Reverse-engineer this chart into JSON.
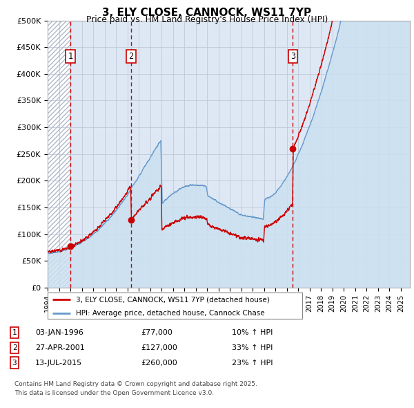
{
  "title": "3, ELY CLOSE, CANNOCK, WS11 7YP",
  "subtitle": "Price paid vs. HM Land Registry's House Price Index (HPI)",
  "ylim": [
    0,
    500000
  ],
  "yticks": [
    0,
    50000,
    100000,
    150000,
    200000,
    250000,
    300000,
    350000,
    400000,
    450000,
    500000
  ],
  "ytick_labels": [
    "£0",
    "£50K",
    "£100K",
    "£150K",
    "£200K",
    "£250K",
    "£300K",
    "£350K",
    "£400K",
    "£450K",
    "£500K"
  ],
  "xlim_start": 1994.0,
  "xlim_end": 2025.8,
  "sale_dates": [
    1996.01,
    2001.32,
    2015.53
  ],
  "sale_prices": [
    77000,
    127000,
    260000
  ],
  "sale_labels": [
    "1",
    "2",
    "3"
  ],
  "legend_line1": "3, ELY CLOSE, CANNOCK, WS11 7YP (detached house)",
  "legend_line2": "HPI: Average price, detached house, Cannock Chase",
  "table_entries": [
    {
      "num": "1",
      "date": "03-JAN-1996",
      "price": "£77,000",
      "hpi": "10% ↑ HPI"
    },
    {
      "num": "2",
      "date": "27-APR-2001",
      "price": "£127,000",
      "hpi": "33% ↑ HPI"
    },
    {
      "num": "3",
      "date": "13-JUL-2015",
      "price": "£260,000",
      "hpi": "23% ↑ HPI"
    }
  ],
  "footnote": "Contains HM Land Registry data © Crown copyright and database right 2025.\nThis data is licensed under the Open Government Licence v3.0.",
  "price_line_color": "#cc0000",
  "hpi_line_color": "#6699cc",
  "hpi_fill_color": "#cce0f0",
  "grid_color": "#c0c8d8",
  "dashed_line_color": "#cc0000",
  "background_color": "#ffffff",
  "plot_bg_color": "#dde8f4"
}
